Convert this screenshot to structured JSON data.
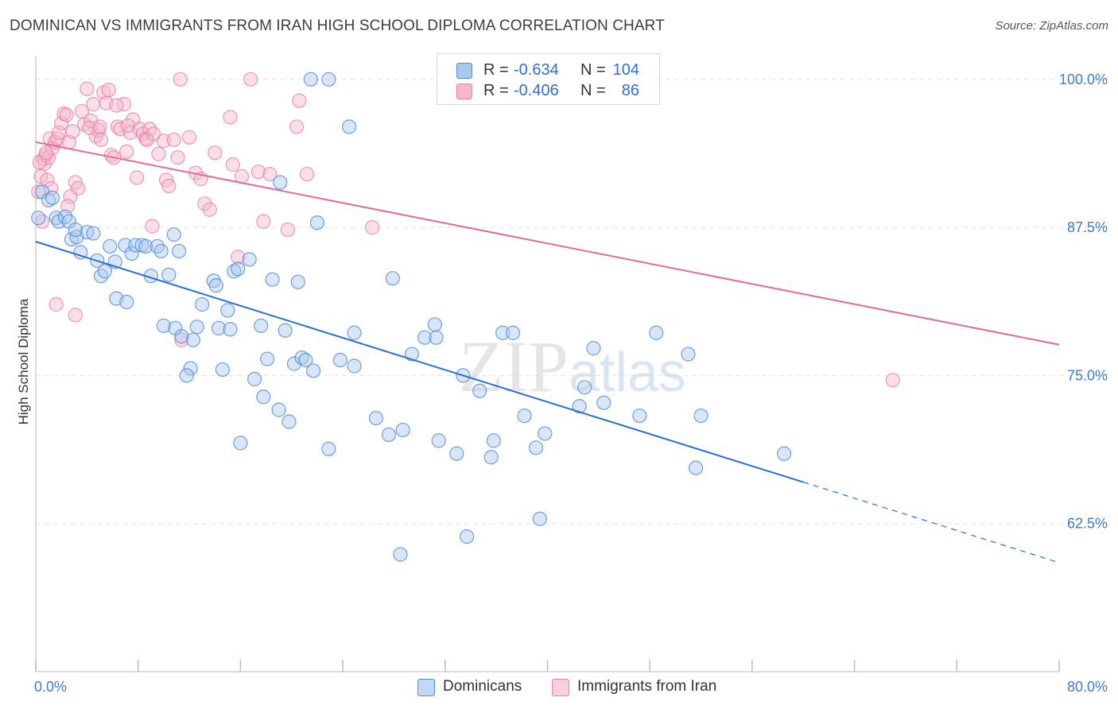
{
  "title": "DOMINICAN VS IMMIGRANTS FROM IRAN HIGH SCHOOL DIPLOMA CORRELATION CHART",
  "source": "Source: ZipAtlas.com",
  "colors": {
    "blue_fill": "#a9c8f0",
    "blue_stroke": "#4f8ad6",
    "blue_line": "#2b6fd1",
    "pink_fill": "#f7b8cc",
    "pink_stroke": "#e87fa3",
    "pink_line": "#e26b95",
    "axis_label": "#3d7bd0",
    "grid": "#e3e3e3"
  },
  "legend": {
    "rows": [
      {
        "r_label": "R =",
        "r_value": "-0.634",
        "n_label": "N =",
        "n_value": "104"
      },
      {
        "r_label": "R =",
        "r_value": "-0.406",
        "n_label": "N =",
        "n_value": "86"
      }
    ]
  },
  "bottom_legend": [
    "Dominicans",
    "Immigrants from Iran"
  ],
  "watermark": "ZIPatlas",
  "chart_data": {
    "type": "scatter",
    "title": "DOMINICAN VS IMMIGRANTS FROM IRAN HIGH SCHOOL DIPLOMA CORRELATION CHART",
    "xlabel": "",
    "ylabel": "High School Diploma",
    "xlim": [
      0,
      80
    ],
    "ylim": [
      50,
      102
    ],
    "x_tick_labels": [
      "0.0%",
      "80.0%"
    ],
    "y_ticks": [
      62.5,
      75.0,
      87.5,
      100.0
    ],
    "y_tick_labels": [
      "62.5%",
      "75.0%",
      "87.5%",
      "100.0%"
    ],
    "grid": true,
    "legend_placement": "top-center",
    "series": [
      {
        "name": "Dominicans",
        "color": "#a9c8f0",
        "trend": {
          "x0": 0,
          "y0": 86.3,
          "x1": 60,
          "y1": 66.0,
          "dashed_to_x": 80,
          "dashed_to_y": 59.2
        },
        "points": [
          [
            0.5,
            90.5
          ],
          [
            1.0,
            89.8
          ],
          [
            1.3,
            90.0
          ],
          [
            1.6,
            88.3
          ],
          [
            1.8,
            88.0
          ],
          [
            2.3,
            88.4
          ],
          [
            2.6,
            88.0
          ],
          [
            2.8,
            86.5
          ],
          [
            3.2,
            86.7
          ],
          [
            4.0,
            87.1
          ],
          [
            4.5,
            87.0
          ],
          [
            3.5,
            85.4
          ],
          [
            4.8,
            84.7
          ],
          [
            5.1,
            83.4
          ],
          [
            5.4,
            83.8
          ],
          [
            5.8,
            85.9
          ],
          [
            6.2,
            84.6
          ],
          [
            7.0,
            86.0
          ],
          [
            7.5,
            85.3
          ],
          [
            7.8,
            86.0
          ],
          [
            8.3,
            86.0
          ],
          [
            8.6,
            85.9
          ],
          [
            9.0,
            83.4
          ],
          [
            9.5,
            85.9
          ],
          [
            9.8,
            85.5
          ],
          [
            10.4,
            83.5
          ],
          [
            10.8,
            86.9
          ],
          [
            11.2,
            85.5
          ],
          [
            6.3,
            81.5
          ],
          [
            7.1,
            81.2
          ],
          [
            10.0,
            79.2
          ],
          [
            10.9,
            79.0
          ],
          [
            11.4,
            78.3
          ],
          [
            12.3,
            78.0
          ],
          [
            12.6,
            79.1
          ],
          [
            13.0,
            81.0
          ],
          [
            12.1,
            75.6
          ],
          [
            11.8,
            75.0
          ],
          [
            14.3,
            79.0
          ],
          [
            15.2,
            78.9
          ],
          [
            13.9,
            83.0
          ],
          [
            14.1,
            82.6
          ],
          [
            15.0,
            80.5
          ],
          [
            15.5,
            83.8
          ],
          [
            15.8,
            84.0
          ],
          [
            16.7,
            84.8
          ],
          [
            17.6,
            79.2
          ],
          [
            18.5,
            83.1
          ],
          [
            19.5,
            78.8
          ],
          [
            20.5,
            82.9
          ],
          [
            14.6,
            75.5
          ],
          [
            17.1,
            74.7
          ],
          [
            17.8,
            73.2
          ],
          [
            18.1,
            76.4
          ],
          [
            19.0,
            72.1
          ],
          [
            19.8,
            71.1
          ],
          [
            20.2,
            76.0
          ],
          [
            20.8,
            76.5
          ],
          [
            21.1,
            76.3
          ],
          [
            21.7,
            75.4
          ],
          [
            16.0,
            69.3
          ],
          [
            22.0,
            87.9
          ],
          [
            21.5,
            100.0
          ],
          [
            22.9,
            100.0
          ],
          [
            24.5,
            96.0
          ],
          [
            19.1,
            91.3
          ],
          [
            22.9,
            68.8
          ],
          [
            23.8,
            76.3
          ],
          [
            24.9,
            75.8
          ],
          [
            24.9,
            78.6
          ],
          [
            26.6,
            71.4
          ],
          [
            27.9,
            83.2
          ],
          [
            27.6,
            70.0
          ],
          [
            28.7,
            70.4
          ],
          [
            29.4,
            76.8
          ],
          [
            30.4,
            78.2
          ],
          [
            31.2,
            79.3
          ],
          [
            31.3,
            78.2
          ],
          [
            31.5,
            69.5
          ],
          [
            32.9,
            68.4
          ],
          [
            33.4,
            75.0
          ],
          [
            33.7,
            61.4
          ],
          [
            34.7,
            73.7
          ],
          [
            35.6,
            68.1
          ],
          [
            35.8,
            69.5
          ],
          [
            36.5,
            78.6
          ],
          [
            37.3,
            78.6
          ],
          [
            38.2,
            71.6
          ],
          [
            39.1,
            68.9
          ],
          [
            39.4,
            62.9
          ],
          [
            39.8,
            70.1
          ],
          [
            42.5,
            72.4
          ],
          [
            42.9,
            74.0
          ],
          [
            43.6,
            77.3
          ],
          [
            44.4,
            72.7
          ],
          [
            47.2,
            71.6
          ],
          [
            48.5,
            78.6
          ],
          [
            51.0,
            76.8
          ],
          [
            51.6,
            67.2
          ],
          [
            52.0,
            71.6
          ],
          [
            58.5,
            68.4
          ],
          [
            28.5,
            59.9
          ],
          [
            0.2,
            88.3
          ],
          [
            3.1,
            87.3
          ]
        ]
      },
      {
        "name": "Immigrants from Iran",
        "color": "#f7b8cc",
        "trend": {
          "x0": 0,
          "y0": 94.7,
          "x1": 80,
          "y1": 77.6
        },
        "points": [
          [
            0.2,
            90.5
          ],
          [
            0.4,
            91.8
          ],
          [
            0.6,
            93.3
          ],
          [
            0.7,
            92.9
          ],
          [
            0.8,
            93.6
          ],
          [
            1.0,
            93.4
          ],
          [
            1.1,
            95.0
          ],
          [
            1.3,
            94.2
          ],
          [
            1.5,
            94.7
          ],
          [
            1.7,
            95.0
          ],
          [
            1.8,
            95.5
          ],
          [
            2.0,
            96.3
          ],
          [
            2.2,
            97.1
          ],
          [
            2.4,
            97.0
          ],
          [
            2.6,
            94.7
          ],
          [
            2.9,
            95.6
          ],
          [
            3.1,
            91.3
          ],
          [
            3.3,
            90.8
          ],
          [
            3.6,
            97.3
          ],
          [
            3.8,
            96.2
          ],
          [
            4.0,
            99.2
          ],
          [
            4.3,
            96.5
          ],
          [
            4.5,
            97.9
          ],
          [
            4.7,
            95.2
          ],
          [
            4.9,
            95.7
          ],
          [
            5.1,
            94.9
          ],
          [
            5.3,
            98.9
          ],
          [
            5.5,
            98.0
          ],
          [
            5.7,
            99.1
          ],
          [
            5.9,
            93.6
          ],
          [
            6.1,
            93.4
          ],
          [
            6.4,
            96.0
          ],
          [
            6.6,
            95.8
          ],
          [
            6.9,
            97.9
          ],
          [
            7.1,
            93.9
          ],
          [
            7.4,
            95.5
          ],
          [
            7.6,
            96.6
          ],
          [
            7.9,
            91.7
          ],
          [
            8.1,
            95.8
          ],
          [
            8.4,
            95.4
          ],
          [
            8.6,
            95.0
          ],
          [
            8.9,
            95.8
          ],
          [
            9.1,
            87.6
          ],
          [
            9.6,
            93.7
          ],
          [
            10.0,
            94.8
          ],
          [
            10.2,
            91.5
          ],
          [
            10.4,
            91.0
          ],
          [
            10.8,
            94.9
          ],
          [
            11.1,
            93.4
          ],
          [
            11.4,
            78.0
          ],
          [
            12.0,
            95.1
          ],
          [
            12.5,
            92.1
          ],
          [
            12.9,
            91.6
          ],
          [
            13.2,
            89.5
          ],
          [
            13.6,
            89.0
          ],
          [
            14.0,
            93.8
          ],
          [
            15.2,
            96.8
          ],
          [
            15.4,
            92.8
          ],
          [
            15.8,
            85.0
          ],
          [
            16.1,
            91.8
          ],
          [
            16.8,
            100.0
          ],
          [
            17.4,
            92.2
          ],
          [
            17.8,
            88.0
          ],
          [
            18.3,
            92.0
          ],
          [
            19.7,
            87.3
          ],
          [
            20.4,
            96.0
          ],
          [
            20.6,
            98.2
          ],
          [
            21.2,
            92.0
          ],
          [
            11.3,
            100.0
          ],
          [
            26.3,
            87.5
          ],
          [
            1.6,
            81.0
          ],
          [
            3.1,
            80.1
          ],
          [
            67.0,
            74.6
          ],
          [
            0.3,
            93.0
          ],
          [
            0.9,
            91.5
          ],
          [
            2.7,
            90.1
          ],
          [
            4.2,
            95.9
          ],
          [
            6.3,
            97.8
          ],
          [
            0.5,
            88.0
          ],
          [
            0.8,
            93.8
          ],
          [
            1.2,
            90.8
          ],
          [
            2.5,
            89.3
          ],
          [
            5.0,
            96.0
          ],
          [
            7.2,
            96.1
          ],
          [
            8.7,
            94.9
          ],
          [
            9.2,
            95.4
          ]
        ]
      }
    ]
  }
}
